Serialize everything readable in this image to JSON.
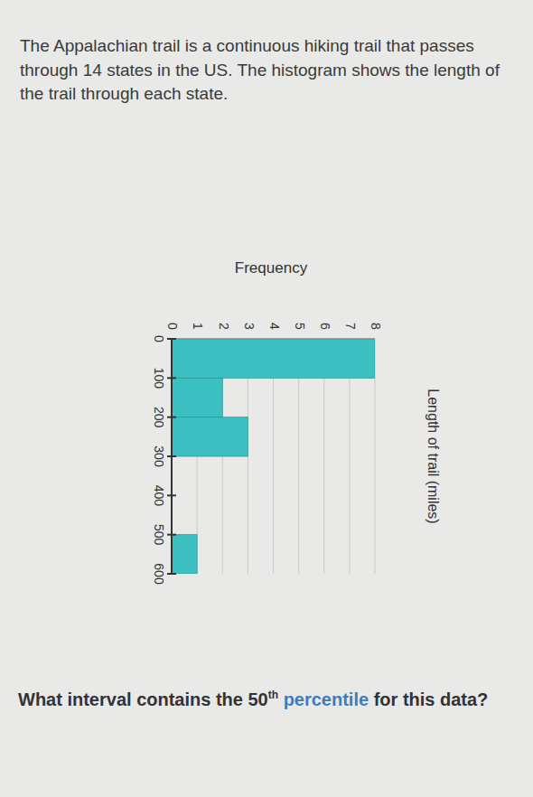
{
  "chart_data": {
    "type": "histogram",
    "title": "The Appalachian trail is a continuous hiking trail that passes through 14 states in the US. The histogram shows the length of the trail through each state.",
    "x_label": "Length of trail (miles)",
    "y_label": "Frequency",
    "bins": [
      0,
      100,
      200,
      300,
      400,
      500,
      600
    ],
    "counts": [
      8,
      2,
      3,
      0,
      0,
      1
    ],
    "color": "#3dc0c1",
    "orientation": "horizontal",
    "grid": true,
    "xlim": [
      0,
      600
    ],
    "xticks": [
      0,
      100,
      200,
      300,
      400,
      500,
      600
    ],
    "ylim": [
      0,
      8
    ],
    "yticks": [
      0,
      1,
      2,
      3,
      4,
      5,
      6,
      7,
      8
    ]
  },
  "question": {
    "parts": [
      "What interval contains the ",
      "50",
      "th",
      " ",
      "percentile",
      " for this data?"
    ]
  }
}
